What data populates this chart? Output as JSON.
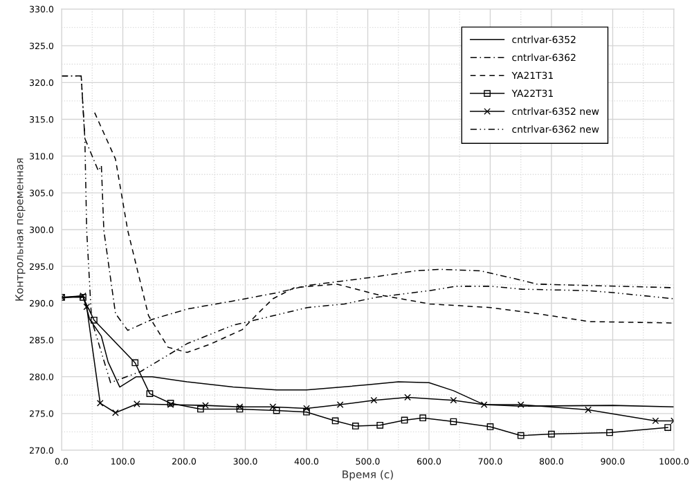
{
  "chart_data": {
    "type": "line",
    "xlabel": "Время (с)",
    "ylabel": "Контрольная переменная",
    "xlim": [
      0,
      1000
    ],
    "ylim": [
      270,
      330
    ],
    "xticks": [
      {
        "value": 0,
        "label": "0.0"
      },
      {
        "value": 100,
        "label": "100.0"
      },
      {
        "value": 200,
        "label": "200.0"
      },
      {
        "value": 300,
        "label": "300.0"
      },
      {
        "value": 400,
        "label": "400.0"
      },
      {
        "value": 500,
        "label": "500.0"
      },
      {
        "value": 600,
        "label": "600.0"
      },
      {
        "value": 700,
        "label": "700.0"
      },
      {
        "value": 800,
        "label": "800.0"
      },
      {
        "value": 900,
        "label": "900.0"
      },
      {
        "value": 1000,
        "label": "1000.0"
      }
    ],
    "yticks": [
      {
        "value": 270,
        "label": "270.0"
      },
      {
        "value": 275,
        "label": "275.0"
      },
      {
        "value": 280,
        "label": "280.0"
      },
      {
        "value": 285,
        "label": "285.0"
      },
      {
        "value": 290,
        "label": "290.0"
      },
      {
        "value": 295,
        "label": "295.0"
      },
      {
        "value": 300,
        "label": "300.0"
      },
      {
        "value": 305,
        "label": "305.0"
      },
      {
        "value": 310,
        "label": "310.0"
      },
      {
        "value": 315,
        "label": "315.0"
      },
      {
        "value": 320,
        "label": "320.0"
      },
      {
        "value": 325,
        "label": "325.0"
      },
      {
        "value": 330,
        "label": "330.0"
      }
    ],
    "grid": true,
    "legend": "top right",
    "series": [
      {
        "name": "cntrlvar-6352",
        "color": "#000000",
        "line_style": "solid",
        "marker": "none",
        "x": [
          0,
          35,
          46,
          65,
          76,
          95,
          122,
          148,
          205,
          280,
          351,
          400,
          500,
          550,
          600,
          640,
          690,
          750,
          900,
          1000
        ],
        "values": [
          290.7,
          291.0,
          287.8,
          285.5,
          282.0,
          278.6,
          280.0,
          280.0,
          279.3,
          278.6,
          278.2,
          278.2,
          278.9,
          279.3,
          279.2,
          278.1,
          276.2,
          276.0,
          276.1,
          275.9
        ]
      },
      {
        "name": "cntrlvar-6362",
        "color": "#000000",
        "line_style": "dashdot",
        "marker": "none",
        "x": [
          0,
          32,
          38,
          60,
          65,
          69,
          88,
          108,
          148,
          205,
          280,
          351,
          401,
          505,
          578,
          618,
          684,
          752,
          775,
          862,
          1000
        ],
        "values": [
          320.9,
          320.9,
          312.4,
          308.0,
          308.7,
          299.9,
          288.6,
          286.3,
          287.8,
          289.2,
          290.3,
          291.4,
          292.4,
          293.5,
          294.4,
          294.6,
          294.4,
          293.1,
          292.6,
          292.4,
          292.1
        ]
      },
      {
        "name": "YA21T31",
        "color": "#000000",
        "line_style": "dashed",
        "marker": "none",
        "x": [
          54,
          88,
          108,
          142,
          174,
          205,
          242,
          295,
          317,
          345,
          380,
          449,
          514,
          601,
          701,
          775,
          862,
          1000
        ],
        "values": [
          315.9,
          309.6,
          299.9,
          288.3,
          284.0,
          283.3,
          284.4,
          286.4,
          288.3,
          290.6,
          292.1,
          292.6,
          291.2,
          289.9,
          289.4,
          288.6,
          287.5,
          287.3
        ]
      },
      {
        "name": "YA22T31",
        "color": "#000000",
        "line_style": "solid",
        "marker": "square",
        "x": [
          0,
          35,
          53,
          120,
          144,
          178,
          227,
          291,
          351,
          400,
          447,
          480,
          520,
          560,
          590,
          640,
          700,
          750,
          800,
          895,
          990
        ],
        "values": [
          290.8,
          290.8,
          287.7,
          281.9,
          277.7,
          276.4,
          275.6,
          275.6,
          275.4,
          275.2,
          274.0,
          273.3,
          273.4,
          274.1,
          274.4,
          273.9,
          273.2,
          272.0,
          272.2,
          272.4,
          273.1
        ]
      },
      {
        "name": "cntrlvar-6352 new",
        "color": "#000000",
        "line_style": "solid",
        "marker": "cross",
        "x": [
          0,
          35,
          41,
          63,
          88,
          123,
          178,
          235,
          291,
          345,
          400,
          455,
          510,
          565,
          640,
          690,
          750,
          860,
          970,
          1000
        ],
        "values": [
          290.8,
          291.0,
          289.5,
          276.4,
          275.1,
          276.3,
          276.2,
          276.1,
          275.9,
          275.9,
          275.7,
          276.2,
          276.8,
          277.2,
          276.8,
          276.2,
          276.2,
          275.5,
          274.0,
          274.0
        ]
      },
      {
        "name": "cntrlvar-6362 new",
        "color": "#000000",
        "line_style": "dashdotdot",
        "marker": "none",
        "x": [
          0,
          32,
          38,
          41,
          49,
          80,
          129,
          205,
          280,
          351,
          401,
          462,
          514,
          601,
          644,
          701,
          752,
          862,
          905,
          1000
        ],
        "values": [
          320.9,
          320.9,
          312.4,
          299.9,
          287.7,
          279.2,
          280.7,
          284.5,
          287.0,
          288.4,
          289.4,
          289.9,
          290.8,
          291.7,
          292.3,
          292.3,
          291.9,
          291.7,
          291.4,
          290.6
        ]
      }
    ]
  }
}
